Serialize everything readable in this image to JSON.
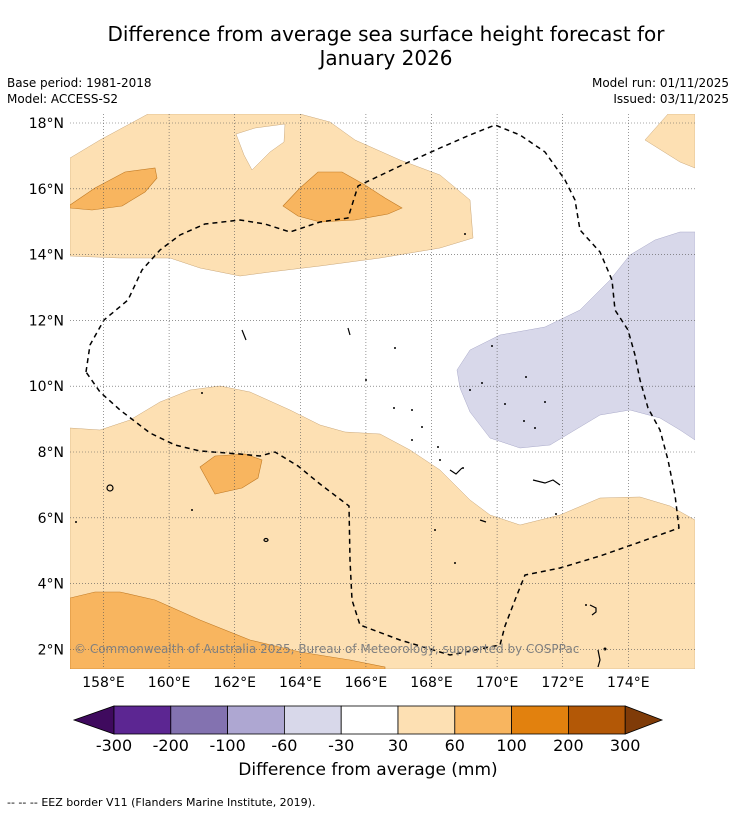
{
  "title": {
    "line1": "Difference from average sea surface height forecast for",
    "line2": "January 2026"
  },
  "metadata": {
    "base_period": "Base period: 1981-2018",
    "model": "Model: ACCESS-S2",
    "model_run": "Model run: 01/11/2025",
    "issued": "Issued: 03/11/2025"
  },
  "map": {
    "lon_labels": [
      "158°E",
      "160°E",
      "162°E",
      "164°E",
      "166°E",
      "168°E",
      "170°E",
      "172°E",
      "174°E"
    ],
    "lat_labels": [
      "18°N",
      "16°N",
      "14°N",
      "12°N",
      "10°N",
      "8°N",
      "6°N",
      "4°N",
      "2°N"
    ],
    "copyright": "© Commonwealth of Australia 2025, Bureau of Meteorology, supported by COSPPac"
  },
  "colorbar": {
    "ticks": [
      "-300",
      "-200",
      "-100",
      "-60",
      "-30",
      "30",
      "60",
      "100",
      "200",
      "300"
    ],
    "label": "Difference from average (mm)",
    "colors": [
      "#3f0a5e",
      "#5c2692",
      "#8372b0",
      "#aea7d2",
      "#d8d8ea",
      "#ffffff",
      "#fde0b3",
      "#f8b55f",
      "#e2810e",
      "#b35806",
      "#7f3b08"
    ]
  },
  "legend": {
    "marker": "--  --  --",
    "text": "EEZ border V11 (Flanders Marine Institute, 2019)."
  }
}
